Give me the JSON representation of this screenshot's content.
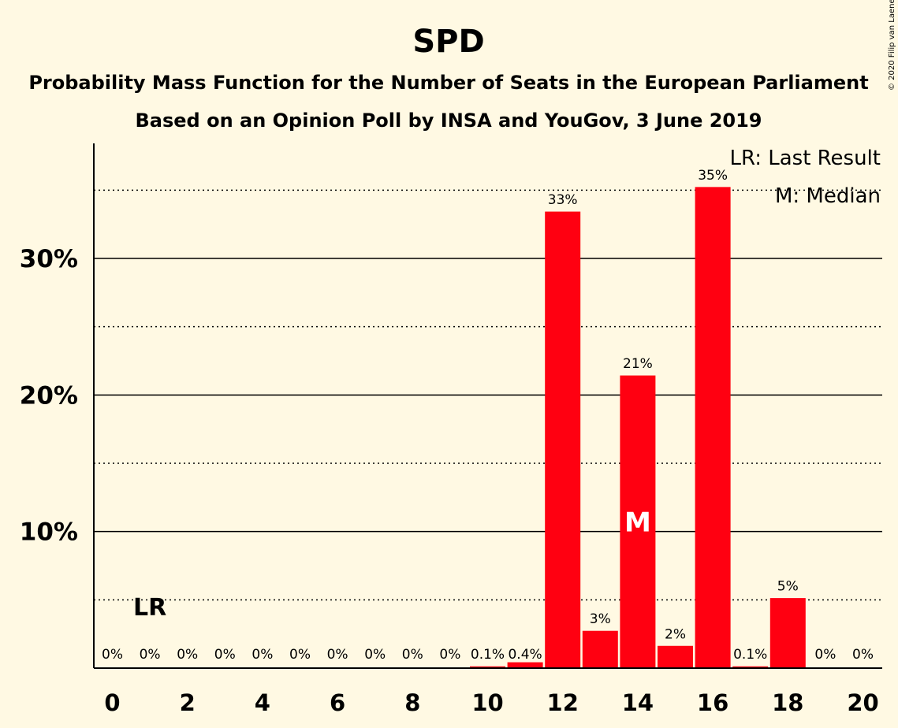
{
  "chart_data": {
    "type": "bar",
    "title": "SPD",
    "subtitle": "Probability Mass Function for the Number of Seats in the European Parliament",
    "subtitle2": "Based on an Opinion Poll by INSA and YouGov, 3 June 2019",
    "copyright": "© 2020 Filip van Laenen",
    "x": [
      0,
      1,
      2,
      3,
      4,
      5,
      6,
      7,
      8,
      9,
      10,
      11,
      12,
      13,
      14,
      15,
      16,
      17,
      18,
      19,
      20
    ],
    "values": [
      0,
      0,
      0,
      0,
      0,
      0,
      0,
      0,
      0,
      0,
      0.1,
      0.4,
      33.4,
      2.7,
      21.4,
      1.6,
      35.2,
      0.1,
      5.1,
      0,
      0
    ],
    "labels": [
      "0%",
      "0%",
      "0%",
      "0%",
      "0%",
      "0%",
      "0%",
      "0%",
      "0%",
      "0%",
      "0.1%",
      "0.4%",
      "33%",
      "3%",
      "21%",
      "2%",
      "35%",
      "0.1%",
      "5%",
      "0%",
      "0%"
    ],
    "xticks": [
      "0",
      "2",
      "4",
      "6",
      "8",
      "10",
      "12",
      "14",
      "16",
      "18",
      "20"
    ],
    "xtick_values": [
      0,
      2,
      4,
      6,
      8,
      10,
      12,
      14,
      16,
      18,
      20
    ],
    "yticks": [
      "10%",
      "20%",
      "30%"
    ],
    "ytick_values": [
      10,
      20,
      30
    ],
    "ylim": [
      0,
      38.5
    ],
    "grid_solid": [
      10,
      20,
      30
    ],
    "grid_dotted": [
      5,
      15,
      25,
      35
    ],
    "bar_color": "#FF0011",
    "last_result": {
      "x": 1,
      "label": "LR"
    },
    "median": {
      "x": 14,
      "label": "M"
    },
    "legend": [
      "LR: Last Result",
      "M: Median"
    ],
    "legend_position": "top-right"
  }
}
